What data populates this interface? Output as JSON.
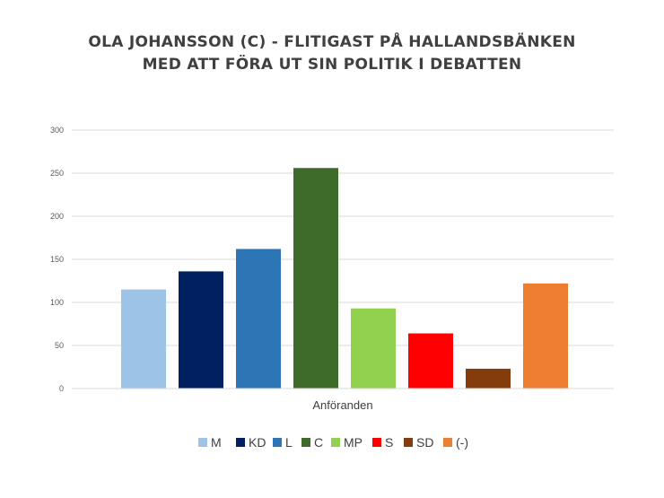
{
  "chart_data": {
    "type": "bar",
    "title_lines": [
      "OLA JOHANSSON (C) - FLITIGAST PÅ HALLANDSBÄNKEN",
      "MED ATT FÖRA UT SIN POLITIK I DEBATTEN"
    ],
    "xlabel": "Anföranden",
    "ylabel": "",
    "ylim": [
      0,
      300
    ],
    "yticks": [
      0,
      50,
      100,
      150,
      200,
      250,
      300
    ],
    "grid": true,
    "legend_position": "bottom",
    "series": [
      {
        "name": "M",
        "value": 115,
        "color": "#9DC3E6"
      },
      {
        "name": "KD",
        "value": 136,
        "color": "#002060"
      },
      {
        "name": "L",
        "value": 162,
        "color": "#2E75B6"
      },
      {
        "name": "C",
        "value": 256,
        "color": "#3E6B2A"
      },
      {
        "name": "MP",
        "value": 93,
        "color": "#92D050"
      },
      {
        "name": "S",
        "value": 64,
        "color": "#FF0000"
      },
      {
        "name": "SD",
        "value": 23,
        "color": "#843C0C"
      },
      {
        "name": "(-)",
        "value": 122,
        "color": "#ED7D31"
      }
    ]
  }
}
